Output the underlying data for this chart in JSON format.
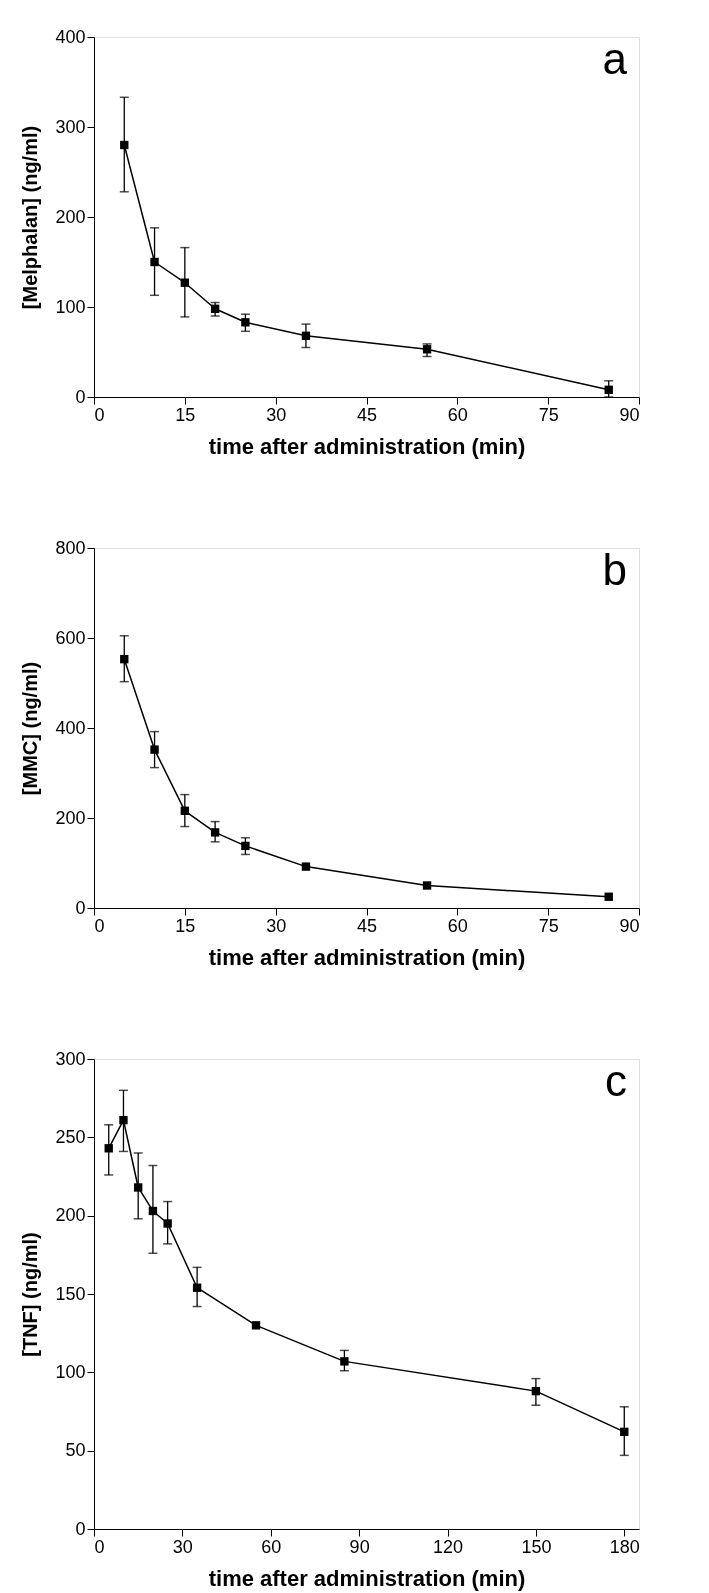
{
  "chart_data": [
    {
      "type": "line",
      "annotations": [
        "a"
      ],
      "xlabel": "time after administration (min)",
      "ylabel": "[Melphalan] (ng/ml)",
      "x": [
        5,
        10,
        15,
        20,
        25,
        35,
        55,
        85
      ],
      "series": [
        {
          "color": "#000000",
          "values": [
            280,
            150,
            127,
            98,
            83,
            68,
            53,
            8
          ],
          "errors": [
            [
              228,
              333
            ],
            [
              113,
              188
            ],
            [
              89,
              166
            ],
            [
              90,
              105
            ],
            [
              73,
              92
            ],
            [
              55,
              81
            ],
            [
              45,
              59
            ],
            [
              0,
              18
            ]
          ]
        }
      ],
      "xlim": [
        0,
        90
      ],
      "xticks": [
        0,
        15,
        30,
        45,
        60,
        75,
        90
      ],
      "ylim": [
        0,
        400
      ],
      "yticks": [
        0,
        100,
        200,
        300,
        400
      ],
      "grid": false,
      "marker": "square",
      "line_style": "solid"
    },
    {
      "type": "line",
      "annotations": [
        "b"
      ],
      "xlabel": "time after administration (min)",
      "ylabel": "[MMC] (ng/ml)",
      "x": [
        5,
        10,
        15,
        20,
        25,
        35,
        55,
        85
      ],
      "series": [
        {
          "color": "#000000",
          "values": [
            553,
            352,
            216,
            168,
            138,
            92,
            50,
            25
          ],
          "errors": [
            [
              503,
              605
            ],
            [
              312,
              392
            ],
            [
              181,
              252
            ],
            [
              147,
              192
            ],
            [
              119,
              156
            ],
            null,
            null,
            null
          ]
        }
      ],
      "xlim": [
        0,
        90
      ],
      "xticks": [
        0,
        15,
        30,
        45,
        60,
        75,
        90
      ],
      "ylim": [
        0,
        800
      ],
      "yticks": [
        0,
        200,
        400,
        600,
        800
      ],
      "grid": false,
      "marker": "square",
      "line_style": "solid"
    },
    {
      "type": "line",
      "annotations": [
        "c"
      ],
      "xlabel": "time after administration (min)",
      "ylabel": "[TNF] (ng/ml)",
      "x": [
        5,
        10,
        15,
        20,
        25,
        35,
        55,
        85,
        150,
        180
      ],
      "series": [
        {
          "color": "#000000",
          "values": [
            243,
            261,
            218,
            203,
            195,
            154,
            130,
            107,
            88,
            62
          ],
          "errors": [
            [
              226,
              258
            ],
            [
              241,
              280
            ],
            [
              198,
              240
            ],
            [
              176,
              232
            ],
            [
              182,
              209
            ],
            [
              142,
              167
            ],
            null,
            [
              101,
              114
            ],
            [
              79,
              96
            ],
            [
              47,
              78
            ]
          ]
        }
      ],
      "xlim": [
        0,
        185
      ],
      "xticks": [
        0,
        30,
        60,
        90,
        120,
        150,
        180
      ],
      "ylim": [
        0,
        300
      ],
      "yticks": [
        0,
        50,
        100,
        150,
        200,
        250,
        300
      ],
      "grid": false,
      "marker": "square",
      "line_style": "solid"
    }
  ]
}
